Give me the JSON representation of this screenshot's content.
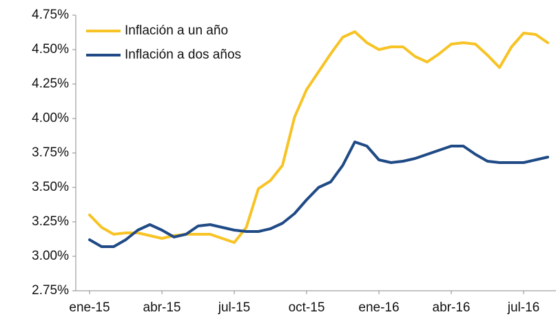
{
  "chart_data": {
    "type": "line",
    "categories": [
      "ene-15",
      null,
      null,
      null,
      null,
      null,
      "abr-15",
      null,
      null,
      null,
      null,
      null,
      "jul-15",
      null,
      null,
      null,
      null,
      null,
      "oct-15",
      null,
      null,
      null,
      null,
      null,
      "ene-16",
      null,
      null,
      null,
      null,
      null,
      "abr-16",
      null,
      null,
      null,
      null,
      null,
      "jul-16",
      null,
      null
    ],
    "series": [
      {
        "name": "Inflación a un año",
        "color": "#f7c325",
        "values": [
          3.3,
          3.21,
          3.16,
          3.17,
          3.17,
          3.15,
          3.13,
          3.15,
          3.16,
          3.16,
          3.16,
          3.13,
          3.1,
          3.21,
          3.49,
          3.55,
          3.66,
          4.01,
          4.21,
          4.34,
          4.47,
          4.59,
          4.63,
          4.55,
          4.5,
          4.52,
          4.52,
          4.45,
          4.41,
          4.47,
          4.54,
          4.55,
          4.54,
          4.46,
          4.37,
          4.52,
          4.62,
          4.61,
          4.55
        ]
      },
      {
        "name": "Inflación a dos años",
        "color": "#1f4a85",
        "values": [
          3.12,
          3.07,
          3.07,
          3.12,
          3.19,
          3.23,
          3.19,
          3.14,
          3.16,
          3.22,
          3.23,
          3.21,
          3.19,
          3.18,
          3.18,
          3.2,
          3.24,
          3.31,
          3.41,
          3.5,
          3.54,
          3.66,
          3.83,
          3.8,
          3.7,
          3.68,
          3.69,
          3.71,
          3.74,
          3.77,
          3.8,
          3.8,
          3.74,
          3.69,
          3.68,
          3.68,
          3.68,
          3.7,
          3.72
        ]
      }
    ],
    "ylim": [
      2.75,
      4.75
    ],
    "yticks": [
      {
        "value": 2.75,
        "label": "2.75%"
      },
      {
        "value": 3.0,
        "label": "3.00%"
      },
      {
        "value": 3.25,
        "label": "3.25%"
      },
      {
        "value": 3.5,
        "label": "3.50%"
      },
      {
        "value": 3.75,
        "label": "3.75%"
      },
      {
        "value": 4.0,
        "label": "4.00%"
      },
      {
        "value": 4.25,
        "label": "4.25%"
      },
      {
        "value": 4.5,
        "label": "4.50%"
      },
      {
        "value": 4.75,
        "label": "4.75%"
      }
    ],
    "legend": "upper left"
  }
}
